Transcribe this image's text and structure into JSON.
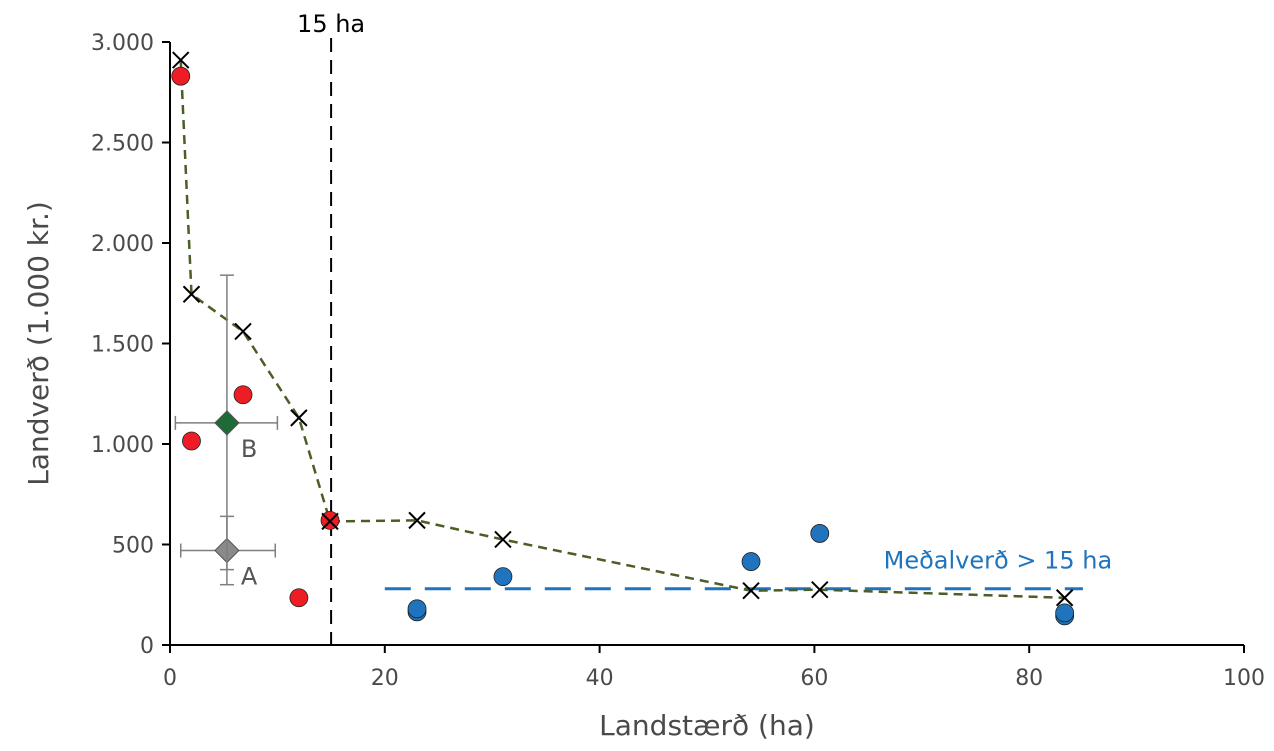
{
  "chart_data": {
    "type": "scatter",
    "xlabel": "Landstærð (ha)",
    "ylabel": "Landverð (1.000 kr.)",
    "xlim": [
      0,
      100
    ],
    "ylim": [
      0,
      3000
    ],
    "x_ticks": [
      0,
      20,
      40,
      60,
      80,
      100
    ],
    "x_tick_labels": [
      "0",
      "20",
      "40",
      "60",
      "80",
      "100"
    ],
    "y_ticks": [
      0,
      500,
      1000,
      1500,
      2000,
      2500,
      3000
    ],
    "y_tick_labels": [
      "0",
      "500",
      "1.000",
      "1.500",
      "2.000",
      "2.500",
      "3.000"
    ],
    "grid": false,
    "colors": {
      "red": "#ee1c24",
      "blue": "#1f74bd",
      "trend": "#4b5e26",
      "mean_line": "#1f74bd",
      "green": "#1e6b35",
      "gray": "#8a8a8a"
    },
    "series": [
      {
        "marker": "circle-red",
        "points": [
          [
            1.0,
            2830
          ],
          [
            2.0,
            1015
          ],
          [
            6.8,
            1245
          ],
          [
            12.0,
            235
          ],
          [
            14.9,
            620
          ]
        ]
      },
      {
        "marker": "circle-blue",
        "points": [
          [
            23,
            165
          ],
          [
            23,
            180
          ],
          [
            31,
            340
          ],
          [
            54.1,
            415
          ],
          [
            60.5,
            555
          ],
          [
            83.3,
            145
          ],
          [
            83.3,
            160
          ]
        ]
      },
      {
        "marker": "x",
        "line": "dashed",
        "points": [
          [
            1.0,
            2910
          ],
          [
            2.0,
            1745
          ],
          [
            6.8,
            1560
          ],
          [
            12.0,
            1130
          ],
          [
            14.9,
            615
          ],
          [
            23,
            620
          ],
          [
            31,
            525
          ],
          [
            54.1,
            270
          ],
          [
            60.5,
            275
          ],
          [
            83.3,
            235
          ]
        ]
      }
    ],
    "summary_points": [
      {
        "label": "A",
        "x": 5.3,
        "y": 470,
        "x_err": [
          1.0,
          9.8
        ],
        "y_err": [
          300,
          640
        ],
        "color": "#8a8a8a"
      },
      {
        "label": "B",
        "x": 5.3,
        "y": 1105,
        "x_err": [
          0.5,
          10.0
        ],
        "y_err": [
          375,
          1840
        ],
        "color": "#1e6b35"
      }
    ],
    "reference_lines": [
      {
        "type": "vertical",
        "x": 15,
        "label": "15 ha"
      },
      {
        "type": "horizontal",
        "y": 280,
        "x_from": 20,
        "x_to": 85,
        "label": "Meðalverð > 15 ha"
      }
    ]
  }
}
